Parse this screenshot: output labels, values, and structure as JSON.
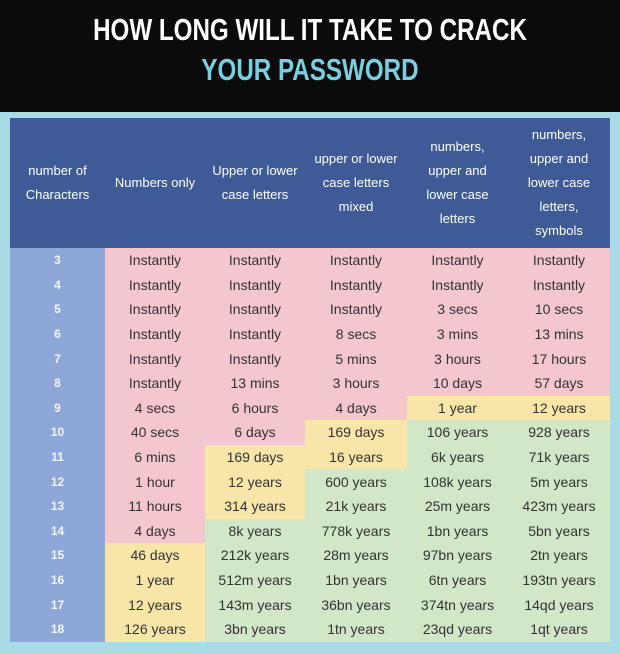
{
  "title": {
    "line1": "HOW LONG WILL IT TAKE TO CRACK",
    "line2": "YOUR PASSWORD"
  },
  "table": {
    "headers": [
      "number of Characters",
      "Numbers only",
      "Upper or lower case letters",
      "upper or lower case letters mixed",
      "numbers, upper and lower case letters",
      "numbers, upper and lower case letters, symbols"
    ],
    "rows": [
      {
        "n": 3,
        "cells": [
          "Instantly",
          "Instantly",
          "Instantly",
          "Instantly",
          "Instantly"
        ],
        "colors": [
          "#f4c6cd",
          "#f4c6cd",
          "#f4c6cd",
          "#f4c6cd",
          "#f4c6cd"
        ]
      },
      {
        "n": 4,
        "cells": [
          "Instantly",
          "Instantly",
          "Instantly",
          "Instantly",
          "Instantly"
        ],
        "colors": [
          "#f4c6cd",
          "#f4c6cd",
          "#f4c6cd",
          "#f4c6cd",
          "#f4c6cd"
        ]
      },
      {
        "n": 5,
        "cells": [
          "Instantly",
          "Instantly",
          "Instantly",
          "3 secs",
          "10 secs"
        ],
        "colors": [
          "#f4c6cd",
          "#f4c6cd",
          "#f4c6cd",
          "#f4c6cd",
          "#f4c6cd"
        ]
      },
      {
        "n": 6,
        "cells": [
          "Instantly",
          "Instantly",
          "8 secs",
          "3 mins",
          "13 mins"
        ],
        "colors": [
          "#f4c6cd",
          "#f4c6cd",
          "#f4c6cd",
          "#f4c6cd",
          "#f4c6cd"
        ]
      },
      {
        "n": 7,
        "cells": [
          "Instantly",
          "Instantly",
          "5 mins",
          "3 hours",
          "17 hours"
        ],
        "colors": [
          "#f4c6cd",
          "#f4c6cd",
          "#f4c6cd",
          "#f4c6cd",
          "#f4c6cd"
        ]
      },
      {
        "n": 8,
        "cells": [
          "Instantly",
          "13 mins",
          "3 hours",
          "10 days",
          "57 days"
        ],
        "colors": [
          "#f4c6cd",
          "#f4c6cd",
          "#f4c6cd",
          "#f4c6cd",
          "#f4c6cd"
        ]
      },
      {
        "n": 9,
        "cells": [
          "4 secs",
          "6 hours",
          "4 days",
          "1 year",
          "12 years"
        ],
        "colors": [
          "#f4c6cd",
          "#f4c6cd",
          "#f4c6cd",
          "#f8e6a8",
          "#f8e6a8"
        ]
      },
      {
        "n": 10,
        "cells": [
          "40 secs",
          "6 days",
          "169 days",
          "106 years",
          "928 years"
        ],
        "colors": [
          "#f4c6cd",
          "#f4c6cd",
          "#f8e6a8",
          "#d2e6c8",
          "#d2e6c8"
        ]
      },
      {
        "n": 11,
        "cells": [
          "6 mins",
          "169 days",
          "16 years",
          "6k years",
          "71k years"
        ],
        "colors": [
          "#f4c6cd",
          "#f8e6a8",
          "#f8e6a8",
          "#d2e6c8",
          "#d2e6c8"
        ]
      },
      {
        "n": 12,
        "cells": [
          "1 hour",
          "12 years",
          "600 years",
          "108k years",
          "5m years"
        ],
        "colors": [
          "#f4c6cd",
          "#f8e6a8",
          "#d2e6c8",
          "#d2e6c8",
          "#d2e6c8"
        ]
      },
      {
        "n": 13,
        "cells": [
          "11 hours",
          "314 years",
          "21k years",
          "25m years",
          "423m years"
        ],
        "colors": [
          "#f4c6cd",
          "#f8e6a8",
          "#d2e6c8",
          "#d2e6c8",
          "#d2e6c8"
        ]
      },
      {
        "n": 14,
        "cells": [
          "4 days",
          "8k years",
          "778k years",
          "1bn years",
          "5bn years"
        ],
        "colors": [
          "#f4c6cd",
          "#d2e6c8",
          "#d2e6c8",
          "#d2e6c8",
          "#d2e6c8"
        ]
      },
      {
        "n": 15,
        "cells": [
          "46 days",
          "212k years",
          "28m years",
          "97bn years",
          "2tn years"
        ],
        "colors": [
          "#f8e6a8",
          "#d2e6c8",
          "#d2e6c8",
          "#d2e6c8",
          "#d2e6c8"
        ]
      },
      {
        "n": 16,
        "cells": [
          "1 year",
          "512m years",
          "1bn years",
          "6tn years",
          "193tn years"
        ],
        "colors": [
          "#f8e6a8",
          "#d2e6c8",
          "#d2e6c8",
          "#d2e6c8",
          "#d2e6c8"
        ]
      },
      {
        "n": 17,
        "cells": [
          "12 years",
          "143m years",
          "36bn years",
          "374tn years",
          "14qd years"
        ],
        "colors": [
          "#f8e6a8",
          "#d2e6c8",
          "#d2e6c8",
          "#d2e6c8",
          "#d2e6c8"
        ]
      },
      {
        "n": 18,
        "cells": [
          "126 years",
          "3bn years",
          "1tn years",
          "23qd years",
          "1qt years"
        ],
        "colors": [
          "#f8e6a8",
          "#d2e6c8",
          "#d2e6c8",
          "#d2e6c8",
          "#d2e6c8"
        ]
      }
    ]
  }
}
